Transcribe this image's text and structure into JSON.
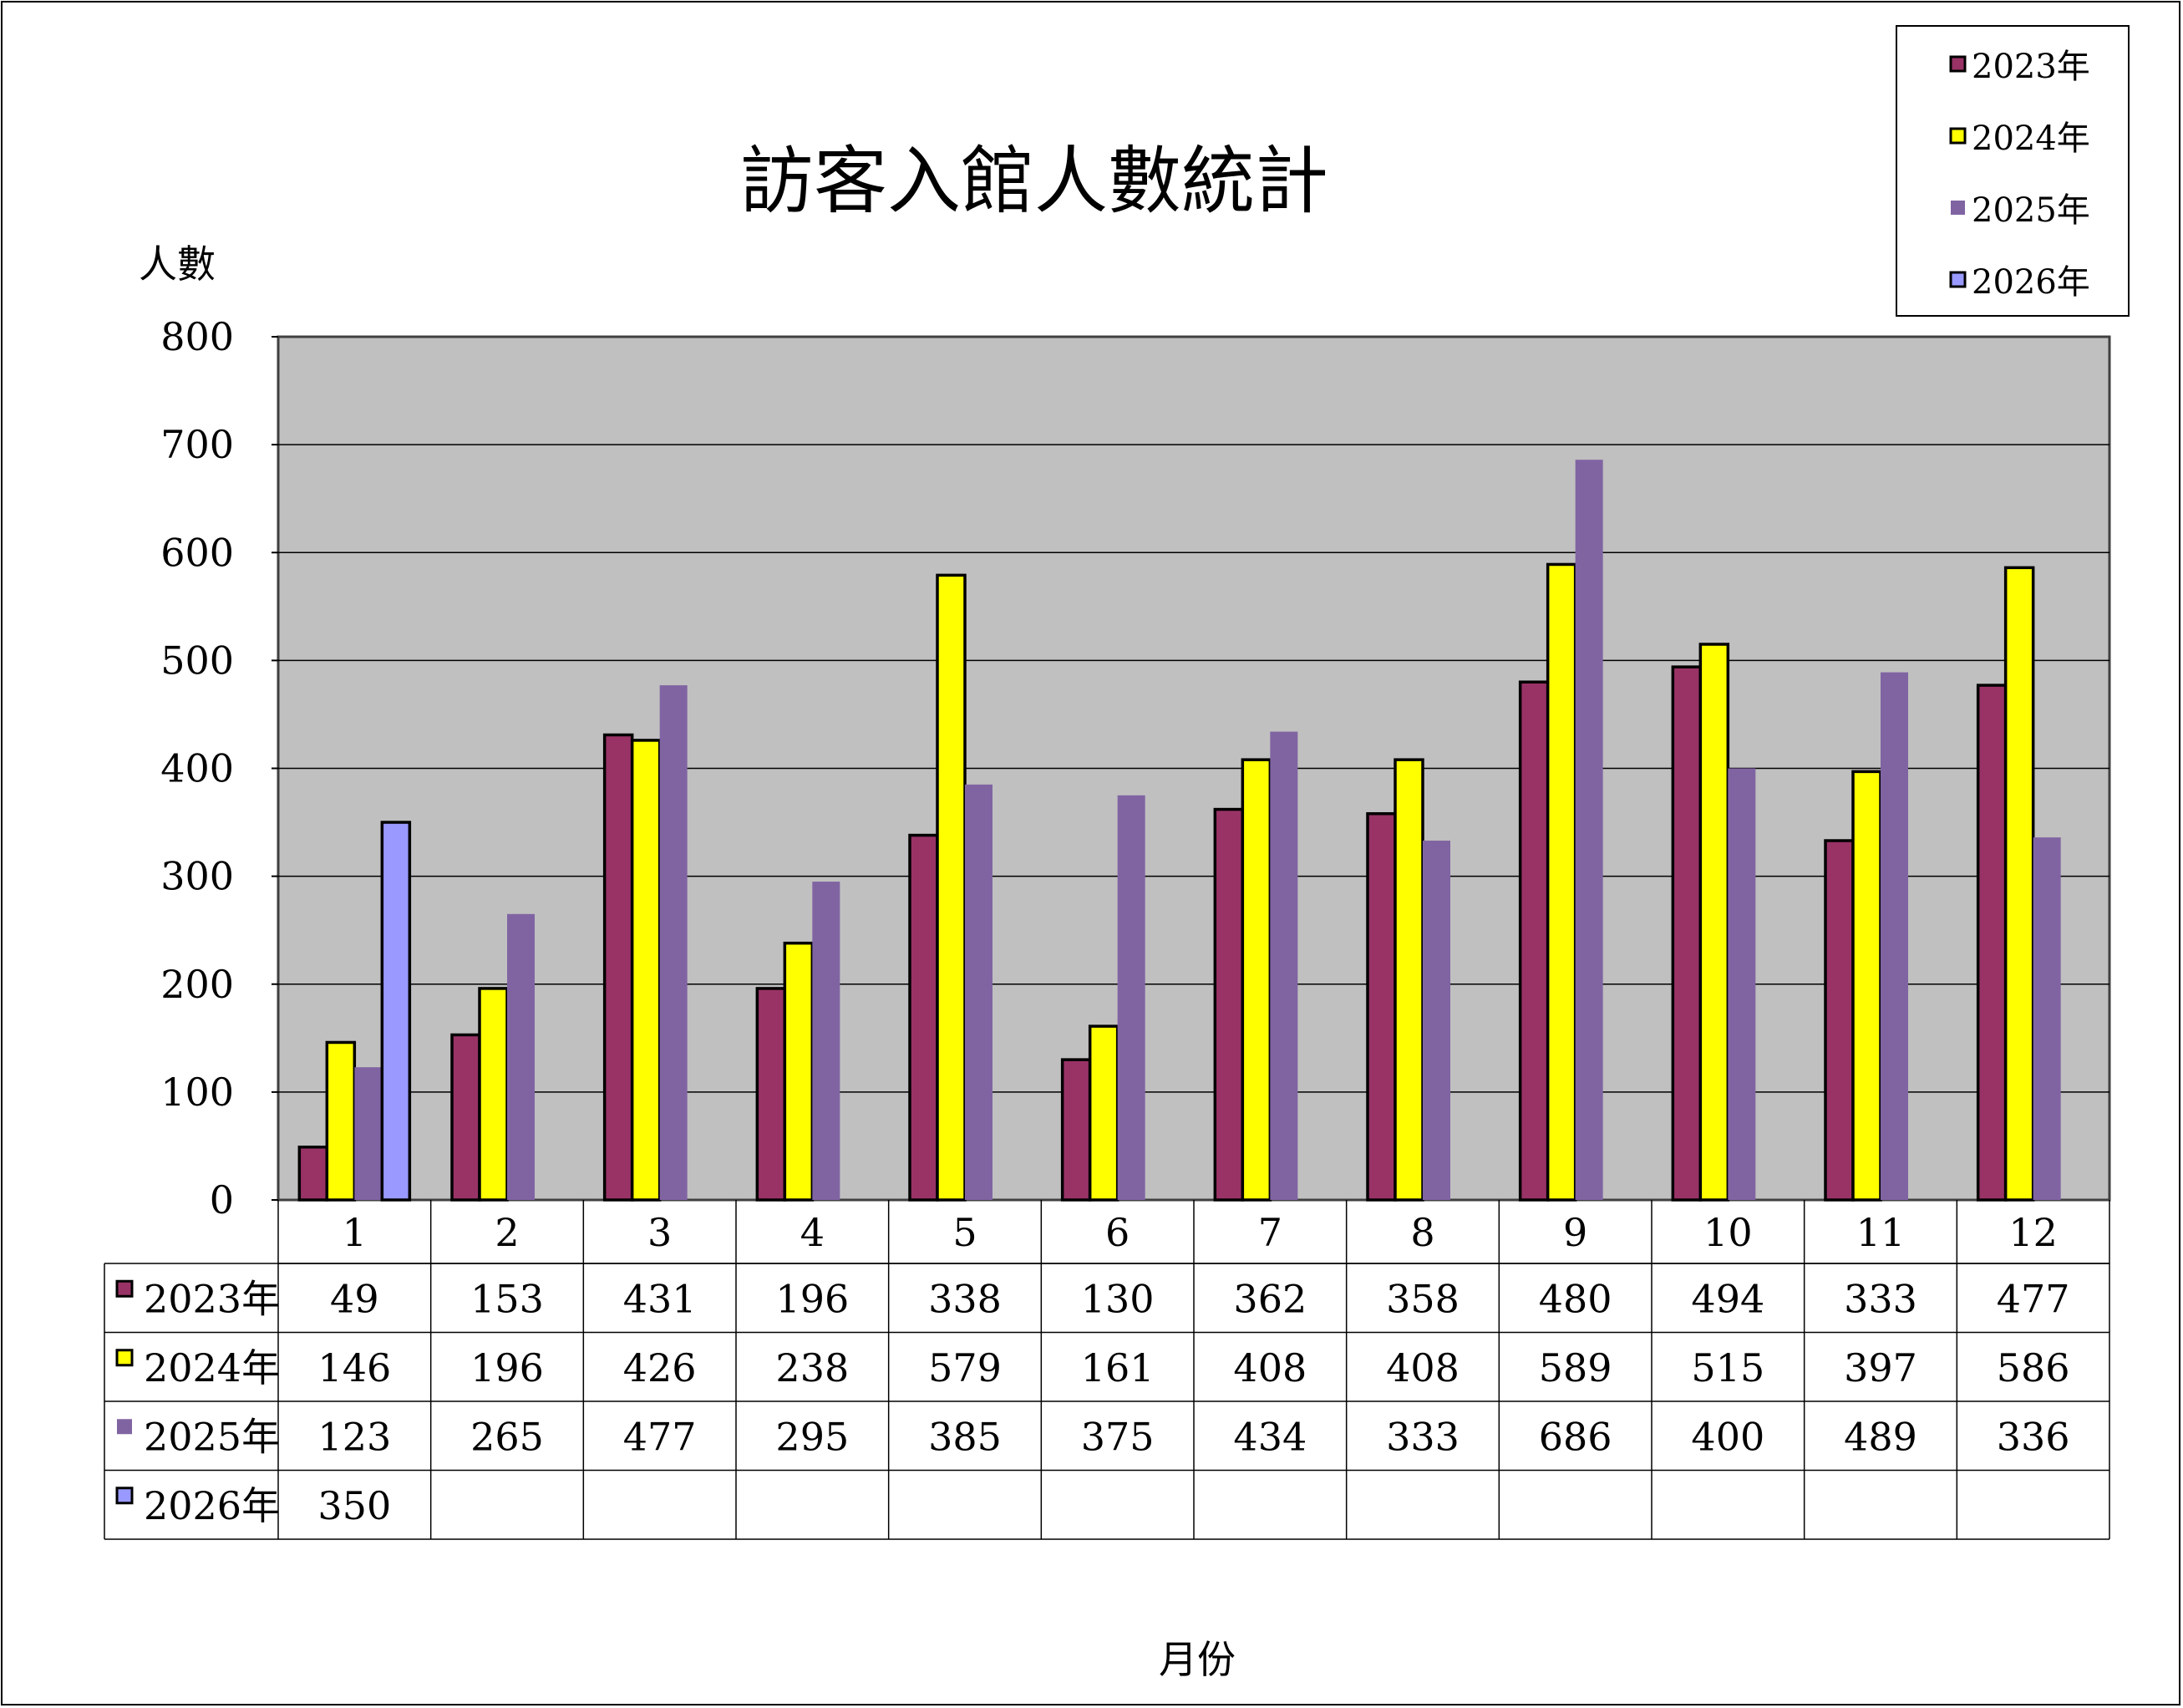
{
  "chart_data": {
    "type": "bar",
    "title": "訪客入館人數統計",
    "ylabel": "人數",
    "xlabel": "月份",
    "ylim": [
      0,
      800
    ],
    "yticks": [
      0,
      100,
      200,
      300,
      400,
      500,
      600,
      700,
      800
    ],
    "categories": [
      "1",
      "2",
      "3",
      "4",
      "5",
      "6",
      "7",
      "8",
      "9",
      "10",
      "11",
      "12"
    ],
    "grid": true,
    "legend_position": "top-right",
    "data_table": true,
    "series": [
      {
        "name": "2023年",
        "color": "#993366",
        "outlined": true,
        "values": [
          49,
          153,
          431,
          196,
          338,
          130,
          362,
          358,
          480,
          494,
          333,
          477
        ]
      },
      {
        "name": "2024年",
        "color": "#FFFF00",
        "outlined": true,
        "values": [
          146,
          196,
          426,
          238,
          579,
          161,
          408,
          408,
          589,
          515,
          397,
          586
        ]
      },
      {
        "name": "2025年",
        "color": "#8064A2",
        "outlined": false,
        "values": [
          123,
          265,
          477,
          295,
          385,
          375,
          434,
          333,
          686,
          400,
          489,
          336
        ]
      },
      {
        "name": "2026年",
        "color": "#9999FF",
        "outlined": true,
        "values": [
          350,
          null,
          null,
          null,
          null,
          null,
          null,
          null,
          null,
          null,
          null,
          null
        ]
      }
    ],
    "plot_background": "#C0C0C0"
  }
}
